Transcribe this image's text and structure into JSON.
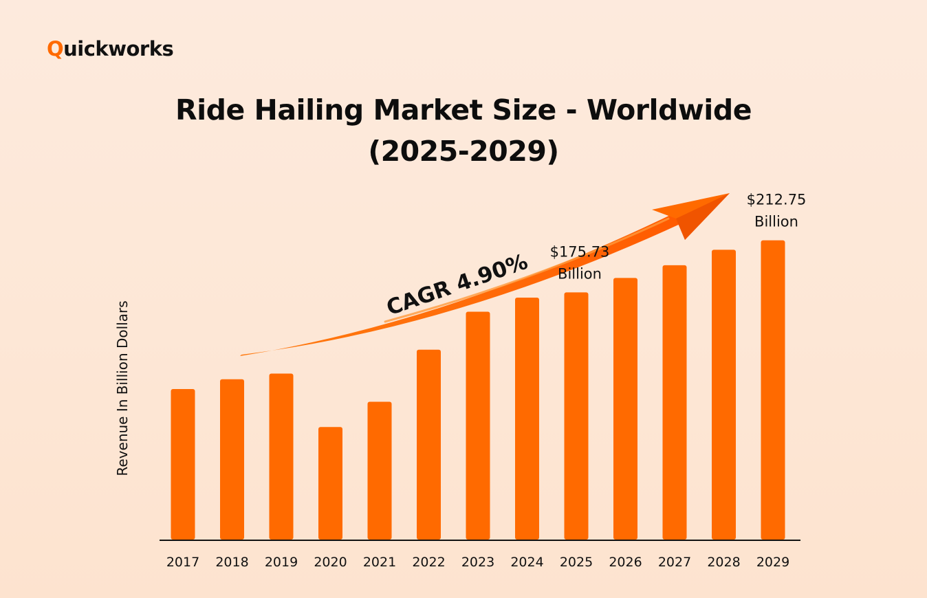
{
  "brand": {
    "logo_initial": "Q",
    "logo_rest": "uickworks",
    "accent_color": "#ff6a00",
    "text_color": "#111111"
  },
  "chart_data": {
    "type": "bar",
    "title_line1": "Ride Hailing Market Size - Worldwide",
    "title_line2": "(2025-2029)",
    "xlabel": "",
    "ylabel": "Revenue In Billion Dollars",
    "categories": [
      "2017",
      "2018",
      "2019",
      "2020",
      "2021",
      "2022",
      "2023",
      "2024",
      "2025",
      "2026",
      "2027",
      "2028",
      "2029"
    ],
    "values": [
      107,
      114,
      118,
      80,
      98,
      135,
      162,
      172,
      175.73,
      186,
      195,
      206,
      212.75
    ],
    "ylim": [
      0,
      215
    ],
    "grid": false,
    "bar_color": "#ff6a00",
    "annotations": [
      {
        "category": "2025",
        "line1": "$175.73",
        "line2": "Billion"
      },
      {
        "category": "2029",
        "line1": "$212.75",
        "line2": "Billion"
      }
    ],
    "trend_arrow": {
      "label": "CAGR 4.90%",
      "color": "#ff6a00"
    }
  }
}
